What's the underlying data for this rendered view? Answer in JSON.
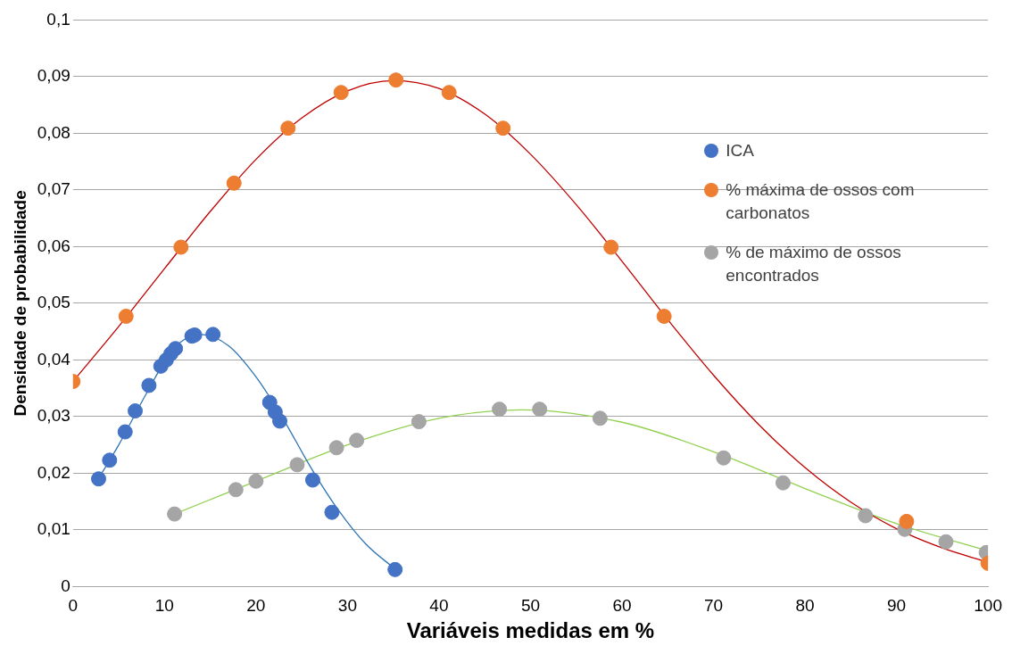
{
  "chart_data": {
    "type": "scatter",
    "xlabel": "Variáveis medidas em %",
    "ylabel": "Densidade de probabilidade",
    "xlim": [
      0,
      100
    ],
    "xticks": [
      0,
      10,
      20,
      30,
      40,
      50,
      60,
      70,
      80,
      90,
      100
    ],
    "ylim": [
      0,
      0.1
    ],
    "yticks": [
      {
        "value": 0,
        "label": "0"
      },
      {
        "value": 0.01,
        "label": "0,01"
      },
      {
        "value": 0.02,
        "label": "0,02"
      },
      {
        "value": 0.03,
        "label": "0,03"
      },
      {
        "value": 0.04,
        "label": "0,04"
      },
      {
        "value": 0.05,
        "label": "0,05"
      },
      {
        "value": 0.06,
        "label": "0,06"
      },
      {
        "value": 0.07,
        "label": "0,07"
      },
      {
        "value": 0.08,
        "label": "0,08"
      },
      {
        "value": 0.09,
        "label": "0,09"
      },
      {
        "value": 0.1,
        "label": "0,1"
      }
    ],
    "grid": "y",
    "legend": "right",
    "marker": "circle",
    "series": [
      {
        "name": "ICA",
        "type": "scatter",
        "color": "#4472c4",
        "x": [
          2.8,
          4.0,
          5.7,
          6.8,
          8.3,
          9.6,
          10.2,
          10.7,
          11.2,
          13.0,
          13.3,
          15.3,
          21.5,
          22.1,
          22.6,
          26.2,
          28.3,
          35.2
        ],
        "values": [
          0.019,
          0.0223,
          0.0273,
          0.031,
          0.0355,
          0.0389,
          0.04,
          0.0411,
          0.042,
          0.0442,
          0.0444,
          0.0445,
          0.0325,
          0.0308,
          0.0292,
          0.0188,
          0.0131,
          0.003
        ]
      },
      {
        "name": "% máxima de ossos com carbonatos",
        "type": "scatter",
        "color": "#ed7d31",
        "x": [
          0,
          5.8,
          11.8,
          17.6,
          23.5,
          29.3,
          35.3,
          41.1,
          47.0,
          58.8,
          64.6,
          91.1,
          100
        ],
        "values": [
          0.0362,
          0.0477,
          0.0599,
          0.0712,
          0.0809,
          0.0872,
          0.0894,
          0.0872,
          0.0809,
          0.0599,
          0.0477,
          0.0115,
          0.0041
        ]
      },
      {
        "name": "% de máximo de ossos encontrados",
        "type": "scatter",
        "color": "#a5a5a5",
        "x": [
          11.1,
          17.8,
          20.0,
          24.5,
          28.8,
          31.0,
          37.8,
          46.6,
          51.0,
          57.6,
          71.1,
          77.6,
          86.6,
          90.9,
          95.4,
          99.8
        ],
        "values": [
          0.0128,
          0.0171,
          0.0186,
          0.0215,
          0.0245,
          0.0258,
          0.0291,
          0.0313,
          0.0313,
          0.0297,
          0.0227,
          0.0183,
          0.0125,
          0.0101,
          0.0079,
          0.006
        ]
      },
      {
        "type": "line",
        "marker": "none",
        "color": "#2e75b6",
        "x": [
          2.8,
          5,
          8,
          11,
          14,
          17,
          20,
          23,
          26,
          29,
          32,
          35.2
        ],
        "values": [
          0.0191,
          0.025,
          0.034,
          0.042,
          0.0445,
          0.0425,
          0.037,
          0.0295,
          0.021,
          0.0135,
          0.0075,
          0.0031
        ]
      },
      {
        "type": "line",
        "marker": "none",
        "color": "#c00000",
        "x": [
          0,
          5,
          10,
          15,
          20,
          25,
          30,
          35,
          40,
          45,
          50,
          55,
          60,
          65,
          70,
          75,
          80,
          85,
          90,
          95,
          100
        ],
        "values": [
          0.0362,
          0.0459,
          0.0561,
          0.0662,
          0.0754,
          0.0827,
          0.0875,
          0.0893,
          0.0879,
          0.0834,
          0.0763,
          0.0674,
          0.0574,
          0.0471,
          0.0373,
          0.0285,
          0.021,
          0.0149,
          0.0102,
          0.0068,
          0.0043
        ]
      },
      {
        "type": "line",
        "marker": "none",
        "color": "#92d050",
        "x": [
          11.1,
          20,
          30,
          40,
          49,
          60,
          70,
          80,
          90,
          100
        ],
        "values": [
          0.0128,
          0.0186,
          0.025,
          0.0297,
          0.0312,
          0.029,
          0.0238,
          0.0173,
          0.0111,
          0.0063
        ]
      }
    ]
  }
}
